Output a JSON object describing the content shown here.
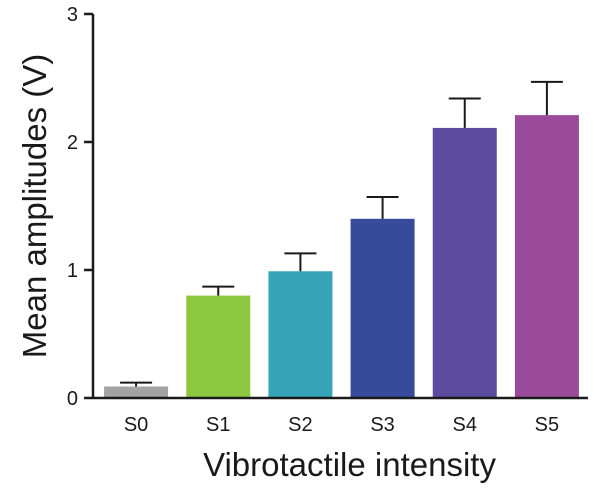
{
  "chart_data": {
    "type": "bar",
    "categories": [
      "S0",
      "S1",
      "S2",
      "S3",
      "S4",
      "S5"
    ],
    "values": [
      0.09,
      0.8,
      0.99,
      1.4,
      2.11,
      2.21
    ],
    "errors": [
      0.03,
      0.07,
      0.14,
      0.17,
      0.23,
      0.26
    ],
    "colors": [
      "#a3a3a3",
      "#8dc63f",
      "#36a3b7",
      "#384a9c",
      "#5a4b9e",
      "#9a4a9a"
    ],
    "error_bar_direction": "upper",
    "title": "",
    "xlabel": "Vibrotactile  intensity",
    "ylabel": "Mean amplitudes (V)",
    "ylim": [
      0,
      3
    ],
    "yticks": [
      0,
      1,
      2,
      3
    ],
    "grid": false,
    "legend": "none"
  }
}
